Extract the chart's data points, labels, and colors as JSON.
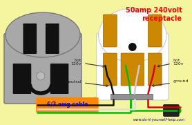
{
  "bg_color": "#F5F5A0",
  "title_text": "50amp 240volt\nreceptacle",
  "title_color": "#FF0000",
  "website_text": "www.do-it-yourself-help.com",
  "website_color": "#0000AA",
  "cable_label": "6/3 awg cable",
  "cable_label_color": "#0000EE",
  "cable_box_color": "#FF8800",
  "outlet_body_color": "#A8A8A8",
  "terminal_color": "#CC8800",
  "terminal_edge": "#996600",
  "slot_color": "#111111",
  "screw_color": "#BBBBBB",
  "face_color": "#FFFFFF",
  "face_edge": "#CCCCCC",
  "gray_bar_color": "#909090",
  "wire_black": "#111111",
  "wire_red": "#DD0000",
  "wire_green": "#00BB00",
  "wire_white": "#CCCCCC",
  "arrow_color": "#333333"
}
